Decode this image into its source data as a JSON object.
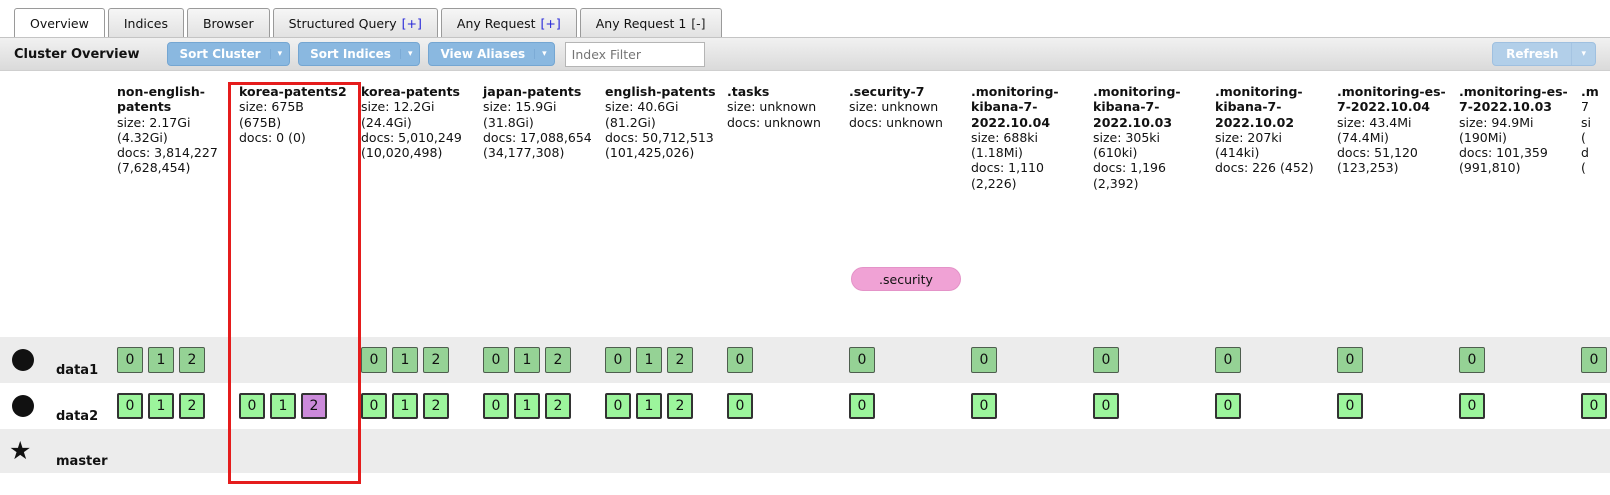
{
  "tabs": [
    {
      "label": "Overview",
      "active": true
    },
    {
      "label": "Indices"
    },
    {
      "label": "Browser"
    },
    {
      "label": "Structured Query",
      "suffix": "[+]",
      "suffix_style": "blue"
    },
    {
      "label": "Any Request",
      "suffix": "[+]",
      "suffix_style": "blue"
    },
    {
      "label": "Any Request 1",
      "suffix": "[-]",
      "suffix_style": "dark"
    }
  ],
  "toolbar": {
    "title": "Cluster Overview",
    "sort_cluster": "Sort Cluster",
    "sort_indices": "Sort Indices",
    "view_aliases": "View Aliases",
    "filter_placeholder": "Index Filter",
    "refresh": "Refresh",
    "dropdown_arrow": "▾"
  },
  "columns": [
    {
      "name": "non-english-patents",
      "stats": "size: 2.17Gi\n(4.32Gi)\ndocs: 3,814,227\n(7,628,454)",
      "shards": {
        "data1": [
          "0",
          "1",
          "2"
        ],
        "data2": [
          "0",
          "1",
          "2"
        ]
      }
    },
    {
      "name": "korea-patents2",
      "stats": "size: 675B\n(675B)\ndocs: 0 (0)",
      "shards": {
        "data1": [],
        "data2": [
          "0",
          "1",
          {
            "label": "2",
            "state": "relocating"
          }
        ]
      }
    },
    {
      "name": "korea-patents",
      "stats": "size: 12.2Gi\n(24.4Gi)\ndocs: 5,010,249\n(10,020,498)",
      "shards": {
        "data1": [
          "0",
          "1",
          "2"
        ],
        "data2": [
          "0",
          "1",
          "2"
        ]
      }
    },
    {
      "name": "japan-patents",
      "stats": "size: 15.9Gi\n(31.8Gi)\ndocs: 17,088,654\n(34,177,308)",
      "shards": {
        "data1": [
          "0",
          "1",
          "2"
        ],
        "data2": [
          "0",
          "1",
          "2"
        ]
      }
    },
    {
      "name": "english-patents",
      "stats": "size: 40.6Gi\n(81.2Gi)\ndocs: 50,712,513\n(101,425,026)",
      "shards": {
        "data1": [
          "0",
          "1",
          "2"
        ],
        "data2": [
          "0",
          "1",
          "2"
        ]
      }
    },
    {
      "name": ".tasks",
      "stats": "size: unknown\ndocs: unknown",
      "shards": {
        "data1": [
          "0"
        ],
        "data2": [
          "0"
        ]
      }
    },
    {
      "name": ".security-7",
      "stats": "size: unknown\ndocs: unknown",
      "alias": ".security",
      "shards": {
        "data1": [
          "0"
        ],
        "data2": [
          "0"
        ]
      }
    },
    {
      "name": ".monitoring-kibana-7-2022.10.04",
      "stats": "size: 688ki\n(1.18Mi)\ndocs: 1,110\n(2,226)",
      "shards": {
        "data1": [
          "0"
        ],
        "data2": [
          "0"
        ]
      }
    },
    {
      "name": ".monitoring-kibana-7-2022.10.03",
      "stats": "size: 305ki\n(610ki)\ndocs: 1,196\n(2,392)",
      "shards": {
        "data1": [
          "0"
        ],
        "data2": [
          "0"
        ]
      }
    },
    {
      "name": ".monitoring-kibana-7-2022.10.02",
      "stats": "size: 207ki\n(414ki)\ndocs: 226 (452)",
      "shards": {
        "data1": [
          "0"
        ],
        "data2": [
          "0"
        ]
      }
    },
    {
      "name": ".monitoring-es-7-2022.10.04",
      "stats": "size: 43.4Mi\n(74.4Mi)\ndocs: 51,120\n(123,253)",
      "shards": {
        "data1": [
          "0"
        ],
        "data2": [
          "0"
        ]
      }
    },
    {
      "name": ".monitoring-es-7-2022.10.03",
      "stats": "size: 94.9Mi\n(190Mi)\ndocs: 101,359\n(991,810)",
      "shards": {
        "data1": [
          "0"
        ],
        "data2": [
          "0"
        ]
      }
    },
    {
      "name": ".m",
      "stats": "7\nsi\n(\nd\n(",
      "clipped": true,
      "shards": {
        "data1": [
          "0"
        ],
        "data2": [
          "0"
        ]
      }
    }
  ],
  "nodes": [
    {
      "name": "data1",
      "icon": "node-circle",
      "row_shade": "gray",
      "shard_style": "replica"
    },
    {
      "name": "data2",
      "icon": "node-circle",
      "row_shade": "white",
      "shard_style": "primary"
    },
    {
      "name": "master",
      "icon": "master-star",
      "row_shade": "gray"
    }
  ],
  "highlight": {
    "column": "korea-patents2",
    "color": "#e51c1c"
  },
  "colors": {
    "accent_button_blue": "#8ab8e0",
    "refresh_pale_blue": "#b2cfe9",
    "replica_shard_green": "#95d295",
    "primary_shard_green": "#9cf59c",
    "relocating_shard_purple": "#cb8ada",
    "alias_pill_pink": "#f0a2d5",
    "row_stripe_gray": "#ececec",
    "tab_suffix_blue": "#2525d8"
  }
}
